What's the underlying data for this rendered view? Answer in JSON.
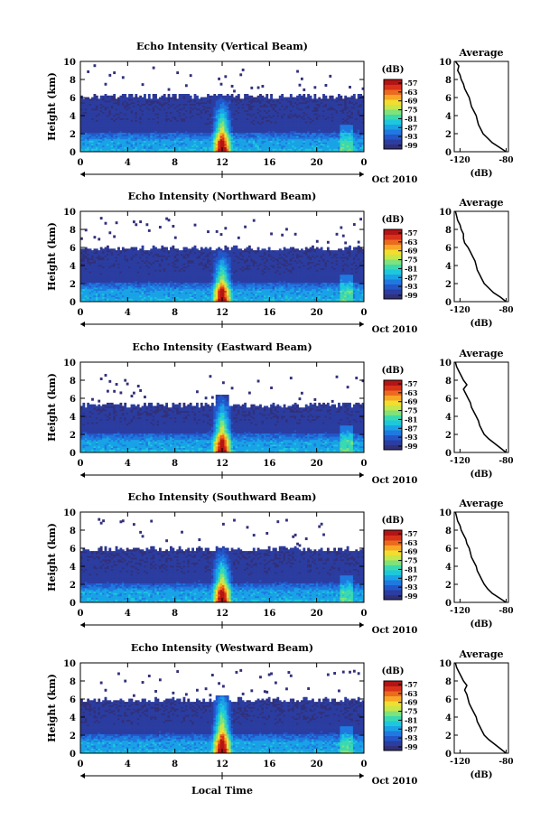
{
  "figure": {
    "xlabel": "Local Time",
    "date_label": "Oct 2010",
    "colorbar_unit": "(dB)",
    "colorbar_ticks": [
      "-57",
      "-63",
      "-69",
      "-75",
      "-81",
      "-87",
      "-93",
      "-99"
    ],
    "colormap": [
      "#31307a",
      "#2b3da0",
      "#2356c8",
      "#1f79e0",
      "#19a3e6",
      "#1ec8dc",
      "#3bd9b0",
      "#7fe27a",
      "#c6e64a",
      "#f3dd2f",
      "#f7a626",
      "#ec6a1e",
      "#d8321a",
      "#b41414"
    ]
  },
  "chart_data": [
    {
      "type": "heatmap",
      "title": "Echo Intensity (Vertical Beam)",
      "xlabel": "",
      "ylabel": "Height (km)",
      "x_ticks": [
        "0",
        "4",
        "8",
        "12",
        "16",
        "20",
        "0"
      ],
      "xlim": [
        0,
        24
      ],
      "y_ticks": [
        "0",
        "2",
        "4",
        "6",
        "8",
        "10"
      ],
      "ylim": [
        0,
        10
      ],
      "cloud_top_km": 6.2,
      "peak_time_h": 12,
      "peak_height_km": 6.0,
      "profile": {
        "title": "Average",
        "xlabel": "(dB)",
        "x_ticks": [
          "-120",
          "-80"
        ],
        "xlim": [
          -125,
          -78
        ],
        "height_km": [
          0,
          0.5,
          1,
          1.5,
          2,
          2.5,
          3,
          3.5,
          4,
          4.5,
          5,
          5.5,
          6,
          6.5,
          7,
          7.5,
          8,
          8.5,
          9,
          9.5,
          10
        ],
        "db": [
          -80,
          -86,
          -92,
          -96,
          -100,
          -102,
          -104,
          -105,
          -106,
          -108,
          -110,
          -111,
          -112,
          -114,
          -116,
          -117,
          -119,
          -120,
          -122,
          -121,
          -124
        ]
      }
    },
    {
      "type": "heatmap",
      "title": "Echo Intensity (Northward Beam)",
      "xlabel": "",
      "ylabel": "Height (km)",
      "x_ticks": [
        "0",
        "4",
        "8",
        "12",
        "16",
        "20",
        "0"
      ],
      "xlim": [
        0,
        24
      ],
      "y_ticks": [
        "0",
        "2",
        "4",
        "6",
        "8",
        "10"
      ],
      "ylim": [
        0,
        10
      ],
      "cloud_top_km": 5.9,
      "peak_time_h": 12,
      "peak_height_km": 5.5,
      "profile": {
        "title": "Average",
        "xlabel": "(dB)",
        "x_ticks": [
          "-120",
          "-80"
        ],
        "xlim": [
          -125,
          -78
        ],
        "height_km": [
          0,
          0.5,
          1,
          1.5,
          2,
          2.5,
          3,
          3.5,
          4,
          4.5,
          5,
          5.5,
          6,
          6.5,
          7,
          7.5,
          8,
          8.5,
          9,
          9.5,
          10
        ],
        "db": [
          -80,
          -85,
          -91,
          -95,
          -99,
          -101,
          -103,
          -105,
          -106,
          -107,
          -109,
          -111,
          -113,
          -116,
          -117,
          -117,
          -119,
          -120,
          -122,
          -123,
          -124
        ]
      }
    },
    {
      "type": "heatmap",
      "title": "Echo Intensity (Eastward Beam)",
      "xlabel": "",
      "ylabel": "Height (km)",
      "x_ticks": [
        "0",
        "4",
        "8",
        "12",
        "16",
        "20",
        "0"
      ],
      "xlim": [
        0,
        24
      ],
      "y_ticks": [
        "0",
        "2",
        "4",
        "6",
        "8",
        "10"
      ],
      "ylim": [
        0,
        10
      ],
      "cloud_top_km": 5.3,
      "peak_time_h": 12,
      "peak_height_km": 6.3,
      "profile": {
        "title": "Average",
        "xlabel": "(dB)",
        "x_ticks": [
          "-120",
          "-80"
        ],
        "xlim": [
          -125,
          -78
        ],
        "height_km": [
          0,
          0.5,
          1,
          1.5,
          2,
          2.5,
          3,
          3.5,
          4,
          4.5,
          5,
          5.5,
          6,
          6.5,
          7,
          7.5,
          8,
          8.5,
          9,
          9.5,
          10
        ],
        "db": [
          -80,
          -85,
          -90,
          -95,
          -99,
          -101,
          -103,
          -104,
          -106,
          -108,
          -110,
          -111,
          -113,
          -115,
          -117,
          -114,
          -117,
          -119,
          -121,
          -123,
          -124
        ]
      }
    },
    {
      "type": "heatmap",
      "title": "Echo Intensity (Southward Beam)",
      "xlabel": "",
      "ylabel": "Height (km)",
      "x_ticks": [
        "0",
        "4",
        "8",
        "12",
        "16",
        "20",
        "0"
      ],
      "xlim": [
        0,
        24
      ],
      "y_ticks": [
        "0",
        "2",
        "4",
        "6",
        "8",
        "10"
      ],
      "ylim": [
        0,
        10
      ],
      "cloud_top_km": 5.9,
      "peak_time_h": 12,
      "peak_height_km": 5.8,
      "profile": {
        "title": "Average",
        "xlabel": "(dB)",
        "x_ticks": [
          "-120",
          "-80"
        ],
        "xlim": [
          -125,
          -78
        ],
        "height_km": [
          0,
          0.5,
          1,
          1.5,
          2,
          2.5,
          3,
          3.5,
          4,
          4.5,
          5,
          5.5,
          6,
          6.5,
          7,
          7.5,
          8,
          8.5,
          9,
          9.5,
          10
        ],
        "db": [
          -80,
          -86,
          -92,
          -96,
          -99,
          -101,
          -103,
          -105,
          -106,
          -108,
          -110,
          -111,
          -112,
          -114,
          -115,
          -117,
          -119,
          -120,
          -122,
          -123,
          -124
        ]
      }
    },
    {
      "type": "heatmap",
      "title": "Echo Intensity (Westward Beam)",
      "xlabel": "",
      "ylabel": "Height (km)",
      "x_ticks": [
        "0",
        "4",
        "8",
        "12",
        "16",
        "20",
        "0"
      ],
      "xlim": [
        0,
        24
      ],
      "y_ticks": [
        "0",
        "2",
        "4",
        "6",
        "8",
        "10"
      ],
      "ylim": [
        0,
        10
      ],
      "cloud_top_km": 5.9,
      "peak_time_h": 12,
      "peak_height_km": 7.8,
      "profile": {
        "title": "Average",
        "xlabel": "(dB)",
        "x_ticks": [
          "-120",
          "-80"
        ],
        "xlim": [
          -125,
          -78
        ],
        "height_km": [
          0,
          0.5,
          1,
          1.5,
          2,
          2.5,
          3,
          3.5,
          4,
          4.5,
          5,
          5.5,
          6,
          6.5,
          7,
          7.5,
          8,
          8.5,
          9,
          9.5,
          10
        ],
        "db": [
          -80,
          -85,
          -90,
          -95,
          -99,
          -101,
          -103,
          -105,
          -106,
          -108,
          -110,
          -112,
          -113,
          -114,
          -116,
          -114,
          -117,
          -119,
          -121,
          -123,
          -124
        ]
      }
    }
  ]
}
